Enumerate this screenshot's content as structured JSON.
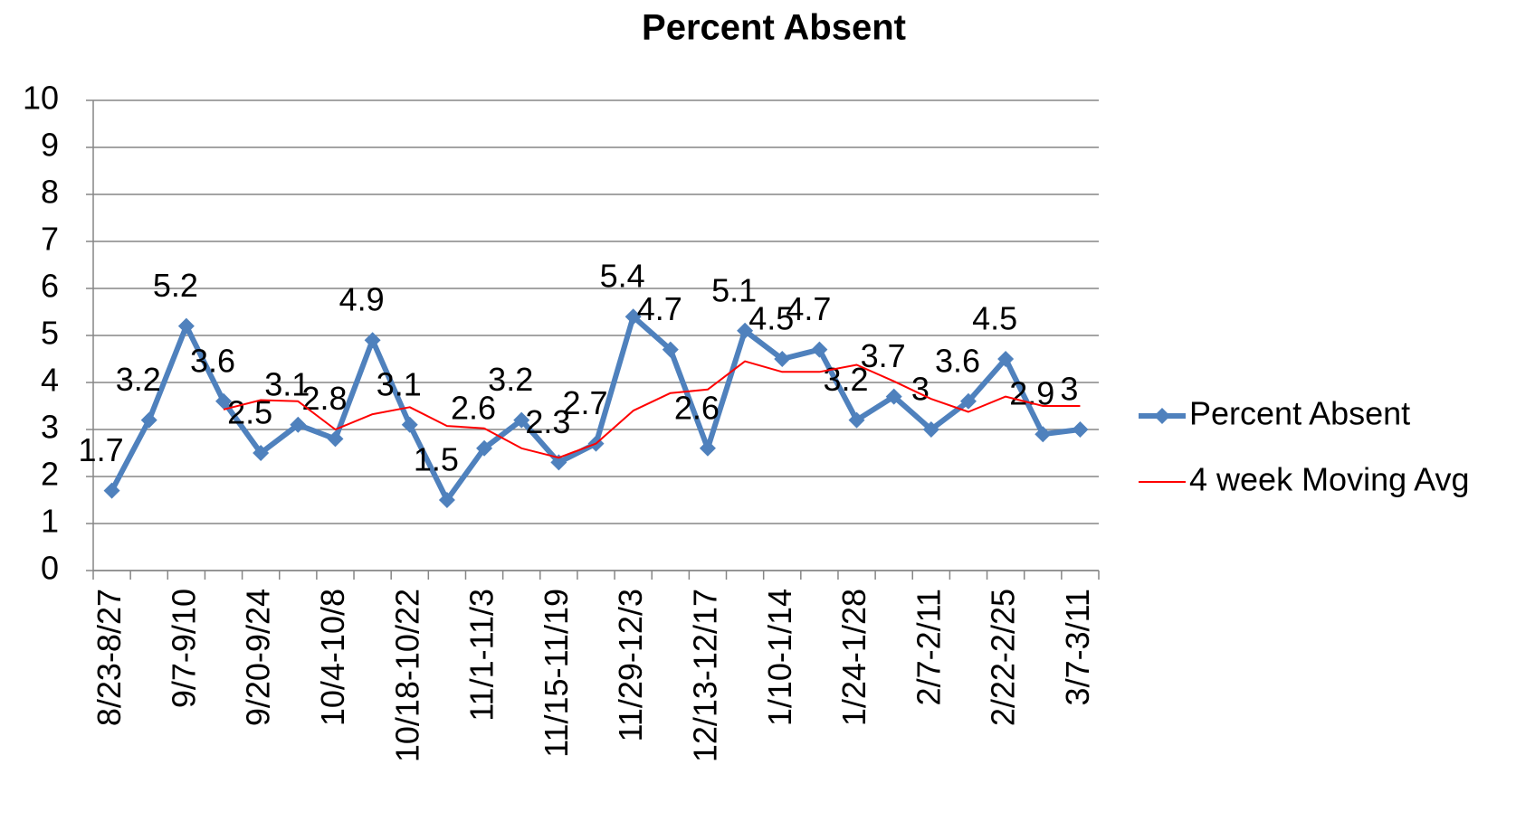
{
  "chart_data": {
    "type": "line",
    "title": "Percent Absent",
    "categories": [
      "8/23-8/27",
      null,
      "9/7-9/10",
      null,
      "9/20-9/24",
      null,
      "10/4-10/8",
      null,
      "10/18-10/22",
      null,
      "11/1-11/3",
      null,
      "11/15-11/19",
      null,
      "11/29-12/3",
      null,
      "12/13-12/17",
      null,
      "1/10-1/14",
      null,
      "1/24-1/28",
      null,
      "2/7-2/11",
      null,
      "2/22-2/25",
      null,
      "3/7-3/11"
    ],
    "series": [
      {
        "name": "Percent Absent",
        "color": "#4f81bd",
        "marker": "diamond",
        "data_labels": true,
        "values": [
          1.7,
          3.2,
          5.2,
          3.6,
          2.5,
          3.1,
          2.8,
          4.9,
          3.1,
          1.5,
          2.6,
          3.2,
          2.3,
          2.7,
          5.4,
          4.7,
          2.6,
          5.1,
          4.5,
          4.7,
          3.2,
          3.7,
          3,
          3.6,
          4.5,
          2.9,
          3
        ]
      },
      {
        "name": "4 week Moving Avg",
        "color": "#ff0000",
        "values": [
          null,
          null,
          null,
          3.425,
          3.625,
          3.6,
          3.0,
          3.325,
          3.475,
          3.075,
          3.025,
          2.6,
          2.4,
          2.7,
          3.4,
          3.775,
          3.85,
          4.45,
          4.225,
          4.225,
          4.375,
          4.025,
          3.65,
          3.375,
          3.7,
          3.5,
          3.5
        ]
      }
    ],
    "ylim": [
      0,
      10
    ],
    "yticks": [
      0,
      1,
      2,
      3,
      4,
      5,
      6,
      7,
      8,
      9,
      10
    ],
    "grid": true,
    "legend": "right"
  }
}
